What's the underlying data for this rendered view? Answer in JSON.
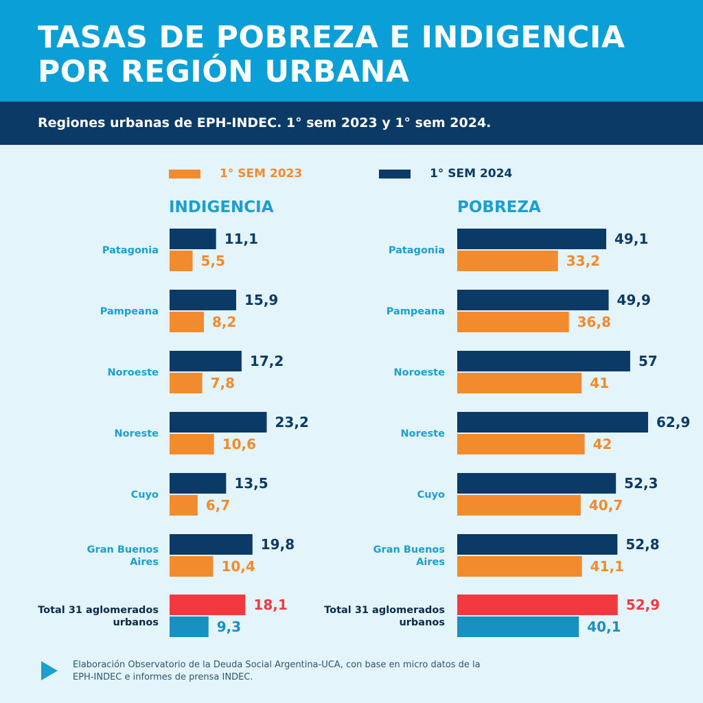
{
  "title_line1": "TASAS DE POBREZA E INDIGENCIA",
  "title_line2": "POR REGIÓN URBANA",
  "subtitle": "Regiones urbanas de EPH-INDEC. 1° sem 2023 y 1° sem 2024.",
  "legend": [
    {
      "label": "1° SEM 2023",
      "color": "#f28a2e"
    },
    {
      "label": "1° SEM 2024",
      "color": "#0c3a66"
    }
  ],
  "source": "Elaboración Observatorio de la Deuda Social Argentina-UCA, con base en micro datos de la EPH-INDEC e informes de prensa INDEC.",
  "colors": {
    "sem2023": "#f28a2e",
    "sem2024": "#0c3a66",
    "total2024": "#f2393f",
    "total2023": "#1a8fc1",
    "region_label": "#1a9fd0",
    "total_label": "#0c2a4a"
  },
  "chart_data": [
    {
      "type": "bar",
      "title": "INDIGENCIA",
      "categories": [
        "Patagonia",
        "Pampeana",
        "Noroeste",
        "Noreste",
        "Cuyo",
        "Gran Buenos Aires",
        "Total 31 aglomerados urbanos"
      ],
      "series": [
        {
          "name": "1° SEM 2024",
          "values": [
            "11,1",
            "15,9",
            "17,2",
            "23,2",
            "13,5",
            "19,8",
            "18,1"
          ]
        },
        {
          "name": "1° SEM 2023",
          "values": [
            "5,5",
            "8,2",
            "7,8",
            "10,6",
            "6,7",
            "10,4",
            "9,3"
          ]
        }
      ],
      "orientation": "horizontal"
    },
    {
      "type": "bar",
      "title": "POBREZA",
      "categories": [
        "Patagonia",
        "Pampeana",
        "Noroeste",
        "Noreste",
        "Cuyo",
        "Gran Buenos Aires",
        "Total 31 aglomerados urbanos"
      ],
      "series": [
        {
          "name": "1° SEM 2024",
          "values": [
            "49,1",
            "49,9",
            "57",
            "62,9",
            "52,3",
            "52,8",
            "52,9"
          ]
        },
        {
          "name": "1° SEM 2023",
          "values": [
            "33,2",
            "36,8",
            "41",
            "42",
            "40,7",
            "41,1",
            "40,1"
          ]
        }
      ],
      "orientation": "horizontal"
    }
  ]
}
